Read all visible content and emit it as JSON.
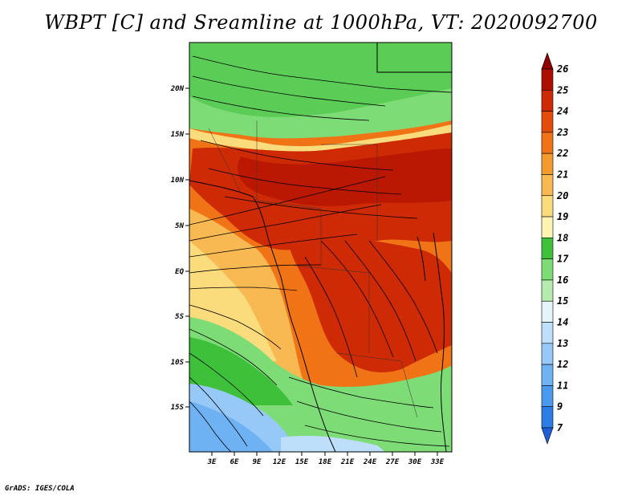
{
  "title": "WBPT [C] and Sreamline at 1000hPa, VT: 2020092700",
  "footer": "GrADS: IGES/COLA",
  "chart_data": {
    "type": "heatmap",
    "variable": "WBPT [C] with streamlines",
    "y_ticks": [
      "20N",
      "15N",
      "10N",
      "5N",
      "EQ",
      "5S",
      "10S",
      "15S"
    ],
    "x_ticks": [
      "3E",
      "6E",
      "9E",
      "12E",
      "15E",
      "18E",
      "21E",
      "24E",
      "27E",
      "30E",
      "33E"
    ],
    "colorbar": {
      "labels": [
        "7",
        "9",
        "11",
        "12",
        "13",
        "14",
        "15",
        "16",
        "17",
        "18",
        "19",
        "20",
        "21",
        "22",
        "23",
        "24",
        "25",
        "26"
      ],
      "colors": [
        "#1f5fd6",
        "#2c7de8",
        "#4a9bf0",
        "#6fb2f4",
        "#96c9f8",
        "#bddff9",
        "#e4f5f9",
        "#b5ecae",
        "#7edc76",
        "#3ec03b",
        "#fdf3b2",
        "#fbdc7c",
        "#f8b952",
        "#f59a2e",
        "#f07416",
        "#e54c0c",
        "#cd2a05",
        "#ad0e00",
        "#8f0000"
      ]
    }
  }
}
